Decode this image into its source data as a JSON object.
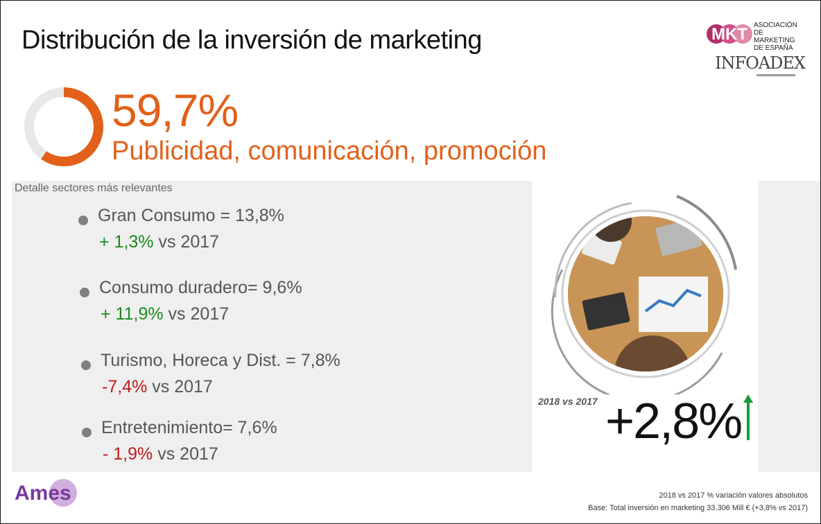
{
  "title": "Distribución de la inversión de marketing",
  "logos": {
    "mkt": "MKT",
    "mkt_text": "ASOCIACIÓN\nDE MARKETING\nDE ESPAÑA",
    "infoadex": "INFOADEX",
    "ames": "Ames"
  },
  "highlight": {
    "value": "59,7%",
    "share": 0.597,
    "label": "Publicidad, comunicación, promoción",
    "color": "#e2601a"
  },
  "sectors_label": "Detalle sectores más relevantes",
  "sectors": [
    {
      "name": "Gran Consumo = 13,8%",
      "change": "+ 1,3%",
      "suffix": "vs 2017",
      "trend": "up"
    },
    {
      "name": "Consumo duradero= 9,6%",
      "change": "+ 11,9%",
      "suffix": "vs 2017",
      "trend": "up"
    },
    {
      "name": "Turismo, Horeca y Dist. = 7,8%",
      "change": "-7,4%",
      "suffix": "vs 2017",
      "trend": "down"
    },
    {
      "name": "Entretenimiento= 7,6%",
      "change": "- 1,9%",
      "suffix": "vs 2017",
      "trend": "down"
    }
  ],
  "growth": {
    "period": "2018 vs 2017",
    "value": "+2,8%",
    "arrow_icon": "arrow-up-icon",
    "arrow_color": "#1a9a3a"
  },
  "footnotes": {
    "line1": "2018 vs 2017 % variación valores absolutos",
    "line2": "Base: Total inversión en marketing 33.306 Mill € (+3,8% vs 2017)"
  },
  "colors": {
    "accent": "#e2601a",
    "positive": "#1a8a1a",
    "negative": "#c01a1a"
  }
}
